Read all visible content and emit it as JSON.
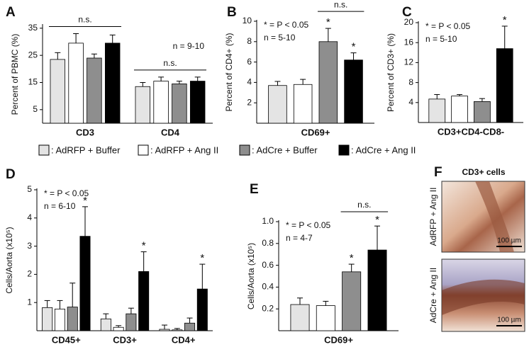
{
  "legend": [
    {
      "name": ": AdRFP + Buffer",
      "color": "#e4e4e4"
    },
    {
      "name": ": AdRFP + Ang II",
      "color": "#ffffff"
    },
    {
      "name": ": AdCre + Buffer",
      "color": "#8e8e8e"
    },
    {
      "name": ": AdCre + Ang II",
      "color": "#000000"
    }
  ],
  "chart_data": [
    {
      "type": "bar",
      "panel": "A",
      "ylabel": "Percent of PBMC (%)",
      "categories": [
        "CD3",
        "CD4"
      ],
      "series": [
        {
          "values": [
            23.5,
            13.5
          ],
          "errors": [
            2.5,
            1.5
          ]
        },
        {
          "values": [
            29.5,
            15.5
          ],
          "errors": [
            3.5,
            1.5
          ]
        },
        {
          "values": [
            24,
            14.5
          ],
          "errors": [
            1.5,
            1
          ]
        },
        {
          "values": [
            29.5,
            15.5
          ],
          "errors": [
            3,
            1.5
          ]
        }
      ],
      "ylim": [
        0,
        36
      ],
      "yticks": [
        5,
        15,
        25,
        35
      ],
      "notes": [
        "n = 9-10"
      ],
      "notes_corner": "upper right",
      "brackets": [
        {
          "text": "n.s.",
          "category": 0,
          "series": [
            0,
            3
          ]
        },
        {
          "text": "n.s.",
          "category": 1,
          "series": [
            0,
            3
          ]
        }
      ],
      "stars": []
    },
    {
      "type": "bar",
      "panel": "B",
      "ylabel": "Percent of CD4+ (%)",
      "categories": [
        "CD69+"
      ],
      "series": [
        {
          "values": [
            3.7
          ],
          "errors": [
            0.4
          ]
        },
        {
          "values": [
            3.8
          ],
          "errors": [
            0.5
          ]
        },
        {
          "values": [
            8.0
          ],
          "errors": [
            1.3
          ]
        },
        {
          "values": [
            6.2
          ],
          "errors": [
            0.7
          ]
        }
      ],
      "ylim": [
        0,
        10
      ],
      "yticks": [
        2,
        4,
        6,
        8,
        10
      ],
      "notes": [
        "* = P < 0.05",
        "n = 5-10"
      ],
      "notes_corner": "upper left",
      "brackets": [
        {
          "text": "n.s.",
          "category": 0,
          "series": [
            2,
            3
          ]
        }
      ],
      "stars": [
        {
          "text": "*",
          "series": 2,
          "category": 0
        },
        {
          "text": "*",
          "series": 3,
          "category": 0
        }
      ]
    },
    {
      "type": "bar",
      "panel": "C",
      "ylabel": "Percent of CD3+ (%)",
      "categories": [
        "CD3+CD4-CD8-"
      ],
      "series": [
        {
          "values": [
            4.7
          ],
          "errors": [
            0.9
          ]
        },
        {
          "values": [
            5.3
          ],
          "errors": [
            0.3
          ]
        },
        {
          "values": [
            4.2
          ],
          "errors": [
            0.6
          ]
        },
        {
          "values": [
            14.8
          ],
          "errors": [
            4.5
          ]
        }
      ],
      "ylim": [
        0,
        20
      ],
      "yticks": [
        4,
        8,
        12,
        16,
        20
      ],
      "notes": [
        "* = P < 0.05",
        "n = 5-10"
      ],
      "notes_corner": "upper left",
      "brackets": [],
      "stars": [
        {
          "text": "*",
          "series": 3,
          "category": 0
        }
      ]
    },
    {
      "type": "bar",
      "panel": "D",
      "ylabel": "Cells/Aorta (x10⁵)",
      "categories": [
        "CD45+",
        "CD3+",
        "CD4+"
      ],
      "series": [
        {
          "values": [
            0.82,
            0.42,
            0.05
          ],
          "errors": [
            0.25,
            0.18,
            0.15
          ]
        },
        {
          "values": [
            0.77,
            0.12,
            0.03
          ],
          "errors": [
            0.3,
            0.06,
            0.05
          ]
        },
        {
          "values": [
            0.84,
            0.6,
            0.27
          ],
          "errors": [
            0.85,
            0.2,
            0.18
          ]
        },
        {
          "values": [
            3.35,
            2.1,
            1.48
          ],
          "errors": [
            1.05,
            0.7,
            0.88
          ]
        }
      ],
      "ylim": [
        0,
        5
      ],
      "yticks": [
        1,
        2,
        3,
        4,
        5
      ],
      "notes": [
        "* = P < 0.05",
        "n = 6-10"
      ],
      "notes_corner": "upper left",
      "brackets": [],
      "stars": [
        {
          "text": "*",
          "series": 3,
          "category": 0
        },
        {
          "text": "*",
          "series": 3,
          "category": 1
        },
        {
          "text": "*",
          "series": 3,
          "category": 2
        }
      ]
    },
    {
      "type": "bar",
      "panel": "E",
      "ylabel": "Cells/Aorta (x10⁵)",
      "categories": [
        "CD69+"
      ],
      "series": [
        {
          "values": [
            0.24
          ],
          "errors": [
            0.06
          ]
        },
        {
          "values": [
            0.23
          ],
          "errors": [
            0.04
          ]
        },
        {
          "values": [
            0.54
          ],
          "errors": [
            0.07
          ]
        },
        {
          "values": [
            0.74
          ],
          "errors": [
            0.22
          ]
        }
      ],
      "ylim": [
        0,
        1.0
      ],
      "yticks": [
        0.2,
        0.4,
        0.6,
        0.8,
        {
          "value": 1.0,
          "label": "1.0"
        }
      ],
      "notes": [
        "* = P < 0.05",
        "n = 4-7"
      ],
      "notes_corner": "upper left",
      "brackets": [
        {
          "text": "n.s.",
          "category": 0,
          "series": [
            2,
            3
          ]
        }
      ],
      "stars": [
        {
          "text": "*",
          "series": 2,
          "category": 0
        },
        {
          "text": "*",
          "series": 3,
          "category": 0
        }
      ]
    }
  ],
  "micrographs": {
    "panel": "F",
    "title": "CD3+ cells",
    "images": [
      {
        "label": "AdRFP + Ang II",
        "scale": "100 µm"
      },
      {
        "label": "AdCre + Ang II",
        "scale": "100 µm"
      }
    ]
  }
}
